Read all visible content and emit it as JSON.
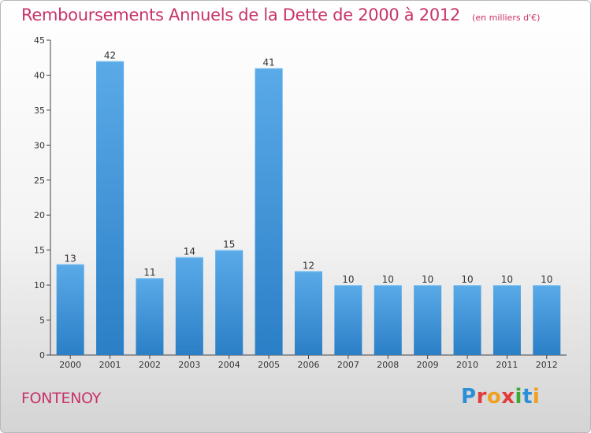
{
  "header": {
    "title": "Remboursements Annuels de la Dette de 2000 à 2012",
    "unit": "(en milliers d'€)"
  },
  "footer": {
    "place": "FONTENOY",
    "logo": "Proxiti"
  },
  "colors": {
    "title": "#c8336a",
    "bar_top": "#5aaae8",
    "bar_bottom": "#2b7fc6",
    "logo_letters": [
      "#2c8fd6",
      "#e23b3b",
      "#f0a020",
      "#e23b3b",
      "#3aaa35",
      "#2c8fd6",
      "#f0a020"
    ]
  },
  "chart_data": {
    "type": "bar",
    "categories": [
      "2000",
      "2001",
      "2002",
      "2003",
      "2004",
      "2005",
      "2006",
      "2007",
      "2008",
      "2009",
      "2010",
      "2011",
      "2012"
    ],
    "values": [
      13,
      42,
      11,
      14,
      15,
      41,
      12,
      10,
      10,
      10,
      10,
      10,
      10
    ],
    "title": "Remboursements Annuels de la Dette de 2000 à 2012",
    "xlabel": "",
    "ylabel": "",
    "ylim": [
      0,
      45
    ],
    "yticks": [
      0,
      5,
      10,
      15,
      20,
      25,
      30,
      35,
      40,
      45
    ],
    "grid": false,
    "legend": "none"
  }
}
